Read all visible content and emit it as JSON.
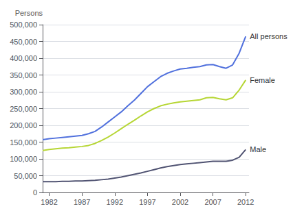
{
  "chart_data": {
    "type": "line",
    "ylabel": "Persons",
    "x": [
      1981,
      1982,
      1983,
      1984,
      1985,
      1986,
      1987,
      1988,
      1989,
      1990,
      1991,
      1992,
      1993,
      1994,
      1995,
      1996,
      1997,
      1998,
      1999,
      2000,
      2001,
      2002,
      2003,
      2004,
      2005,
      2006,
      2007,
      2008,
      2009,
      2010,
      2011,
      2012
    ],
    "series": [
      {
        "name": "All persons",
        "values": [
          157000,
          160000,
          162000,
          164000,
          166000,
          168000,
          170000,
          175000,
          182000,
          195000,
          210000,
          225000,
          240000,
          258000,
          275000,
          295000,
          315000,
          330000,
          345000,
          355000,
          362000,
          368000,
          370000,
          373000,
          375000,
          380000,
          381000,
          375000,
          370000,
          380000,
          415000,
          465000
        ]
      },
      {
        "name": "Female",
        "values": [
          125000,
          128000,
          130000,
          132000,
          133000,
          135000,
          137000,
          140000,
          146000,
          155000,
          165000,
          177000,
          190000,
          203000,
          215000,
          228000,
          240000,
          250000,
          258000,
          263000,
          267000,
          270000,
          272000,
          274000,
          276000,
          282000,
          283000,
          279000,
          276000,
          282000,
          305000,
          335000
        ]
      },
      {
        "name": "Male",
        "values": [
          32000,
          32000,
          32000,
          33000,
          33000,
          34000,
          34000,
          35000,
          36000,
          38000,
          40000,
          43000,
          46000,
          50000,
          54000,
          58000,
          63000,
          68000,
          73000,
          77000,
          80000,
          83000,
          85000,
          87000,
          89000,
          91000,
          93000,
          93000,
          93000,
          96000,
          105000,
          128000
        ]
      }
    ],
    "xlim": [
      1981,
      2012.5
    ],
    "xticks": [
      1982,
      1987,
      1992,
      1997,
      2002,
      2007,
      2012
    ],
    "ylim": [
      0,
      500000
    ],
    "yticks": [
      0,
      {
        "value": 50000,
        "label": "50,000"
      },
      {
        "value": 100000,
        "label": "100,000"
      },
      {
        "value": 150000,
        "label": "150,000"
      },
      {
        "value": 200000,
        "label": "200,000"
      },
      {
        "value": 250000,
        "label": "250,000"
      },
      {
        "value": 300000,
        "label": "300,000"
      },
      {
        "value": 350000,
        "label": "350,000"
      },
      {
        "value": 400000,
        "label": "400,000"
      },
      {
        "value": 450000,
        "label": "450,000"
      },
      {
        "value": 500000,
        "label": "500,000"
      }
    ],
    "grid": true
  }
}
